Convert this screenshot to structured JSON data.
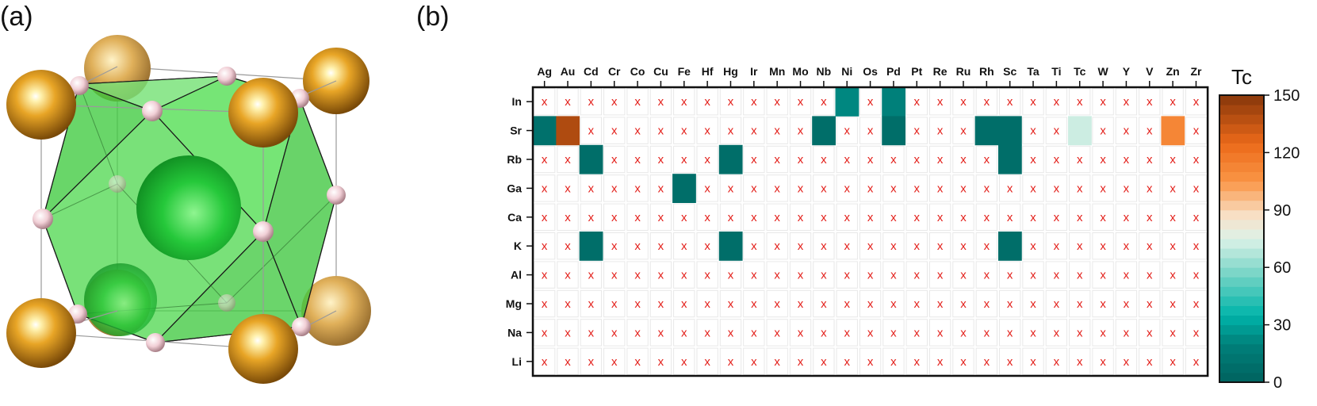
{
  "panel_a_label": "(a)",
  "panel_b_label": "(b)",
  "colors": {
    "gold": "#e0a030",
    "green": "#33cc44",
    "pink": "#f0d0d8",
    "cross": "#e3201b"
  },
  "chart_data": {
    "type": "heatmap",
    "title": "",
    "columns": [
      "Ag",
      "Au",
      "Cd",
      "Cr",
      "Co",
      "Cu",
      "Fe",
      "Hf",
      "Hg",
      "Ir",
      "Mn",
      "Mo",
      "Nb",
      "Ni",
      "Os",
      "Pd",
      "Pt",
      "Re",
      "Ru",
      "Rh",
      "Sc",
      "Ta",
      "Ti",
      "Tc",
      "W",
      "Y",
      "V",
      "Zn",
      "Zr"
    ],
    "rows": [
      "In",
      "Sr",
      "Rb",
      "Ga",
      "Ca",
      "K",
      "Al",
      "Mg",
      "Na",
      "Li"
    ],
    "missing_marker": "x",
    "values": [
      {
        "row": "In",
        "col": "Ni",
        "tc": 22
      },
      {
        "row": "In",
        "col": "Pd",
        "tc": 20
      },
      {
        "row": "Sr",
        "col": "Ag",
        "tc": 10
      },
      {
        "row": "Sr",
        "col": "Au",
        "tc": 140
      },
      {
        "row": "Sr",
        "col": "Nb",
        "tc": 8
      },
      {
        "row": "Sr",
        "col": "Pd",
        "tc": 8
      },
      {
        "row": "Sr",
        "col": "Rh",
        "tc": 8
      },
      {
        "row": "Sr",
        "col": "Sc",
        "tc": 8
      },
      {
        "row": "Sr",
        "col": "Tc",
        "tc": 72
      },
      {
        "row": "Sr",
        "col": "Zn",
        "tc": 112
      },
      {
        "row": "Rb",
        "col": "Cd",
        "tc": 8
      },
      {
        "row": "Rb",
        "col": "Hg",
        "tc": 8
      },
      {
        "row": "Rb",
        "col": "Sc",
        "tc": 8
      },
      {
        "row": "Ga",
        "col": "Fe",
        "tc": 8
      },
      {
        "row": "K",
        "col": "Cd",
        "tc": 8
      },
      {
        "row": "K",
        "col": "Hg",
        "tc": 8
      },
      {
        "row": "K",
        "col": "Sc",
        "tc": 8
      }
    ],
    "colorbar": {
      "label": "Tc",
      "min": 0,
      "max": 150,
      "ticks": [
        0,
        30,
        60,
        90,
        120,
        150
      ]
    }
  }
}
